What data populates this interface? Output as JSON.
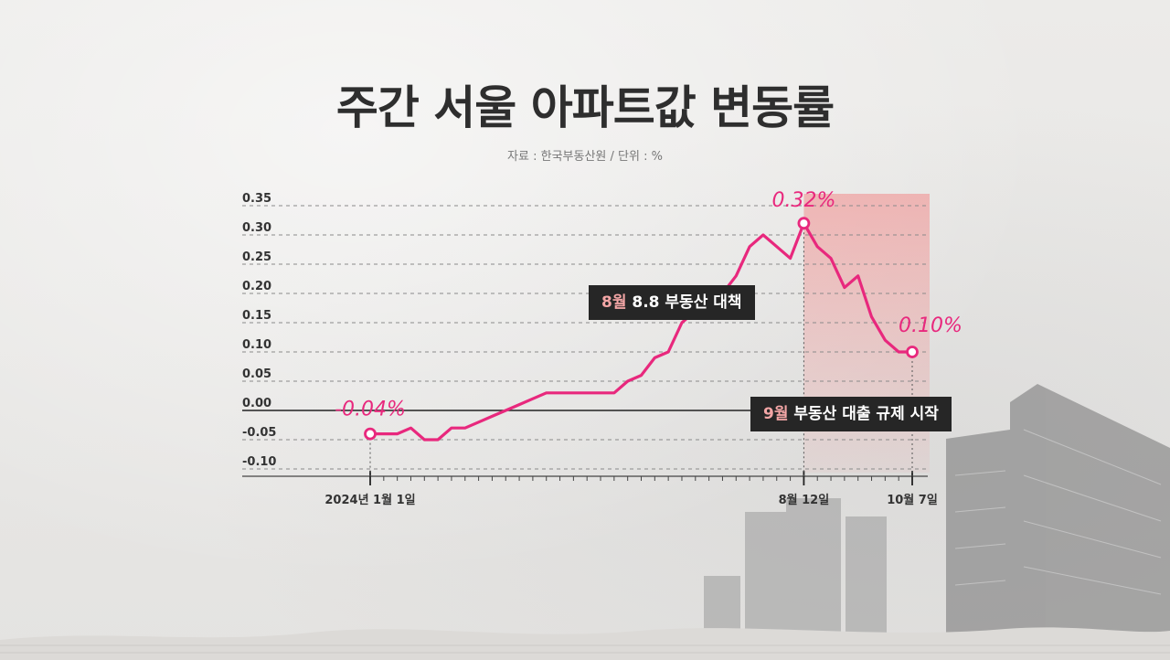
{
  "title": "주간 서울 아파트값 변동률",
  "source": "자료 : 한국부동산원 / 단위 : %",
  "chart_data": {
    "type": "line",
    "y_ticks": [
      "0.35",
      "0.30",
      "0.25",
      "0.20",
      "0.15",
      "0.10",
      "0.05",
      "0.00",
      "-0.05",
      "-0.10"
    ],
    "ylim": [
      -0.1,
      0.35
    ],
    "x_labels": [
      {
        "label": "2024년 1월 1일",
        "index": 0
      },
      {
        "label": "8월 12일",
        "index": 32
      },
      {
        "label": "10월 7일",
        "index": 40
      }
    ],
    "series": [
      {
        "color": "#e8287d",
        "values": [
          -0.04,
          -0.04,
          -0.04,
          -0.03,
          -0.05,
          -0.05,
          -0.03,
          -0.03,
          -0.02,
          -0.01,
          0.0,
          0.01,
          0.02,
          0.03,
          0.03,
          0.03,
          0.03,
          0.03,
          0.03,
          0.05,
          0.06,
          0.09,
          0.1,
          0.15,
          0.17,
          0.18,
          0.2,
          0.23,
          0.28,
          0.3,
          0.28,
          0.26,
          0.32,
          0.28,
          0.26,
          0.21,
          0.23,
          0.16,
          0.12,
          0.1,
          0.1
        ]
      }
    ],
    "annotations": [
      {
        "text": "-0.04%",
        "index": 0
      },
      {
        "text": "0.32%",
        "index": 32
      },
      {
        "text": "0.10%",
        "index": 40
      }
    ],
    "highlight_from_index": 32,
    "grid": true
  },
  "callouts": [
    {
      "month": "8월",
      "text": " 8.8 부동산 대책"
    },
    {
      "month": "9월",
      "text": " 부동산 대출 규제 시작"
    }
  ]
}
